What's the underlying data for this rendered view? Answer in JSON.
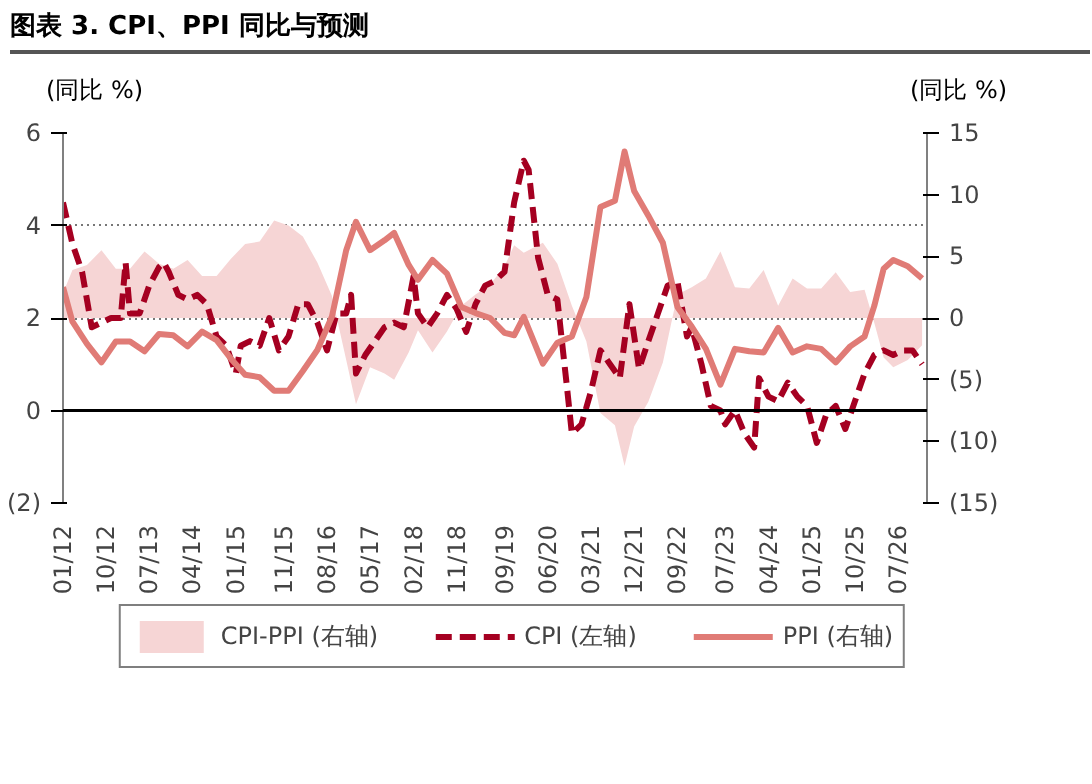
{
  "chart_data": {
    "type": "line",
    "title": "图表 3. CPI、PPI 同比与预测",
    "ylabel": "(同比 %)",
    "y2label": "(同比 %)",
    "xlim": [
      "2012-01",
      "2027-01"
    ],
    "xticks": [
      {
        "value": "2012-01",
        "label": "01/12"
      },
      {
        "value": "2012-10",
        "label": "10/12"
      },
      {
        "value": "2013-07",
        "label": "07/13"
      },
      {
        "value": "2014-04",
        "label": "04/14"
      },
      {
        "value": "2015-01",
        "label": "01/15"
      },
      {
        "value": "2015-11",
        "label": "11/15"
      },
      {
        "value": "2016-08",
        "label": "08/16"
      },
      {
        "value": "2017-05",
        "label": "05/17"
      },
      {
        "value": "2018-02",
        "label": "02/18"
      },
      {
        "value": "2018-11",
        "label": "11/18"
      },
      {
        "value": "2019-09",
        "label": "09/19"
      },
      {
        "value": "2020-06",
        "label": "06/20"
      },
      {
        "value": "2021-03",
        "label": "03/21"
      },
      {
        "value": "2021-12",
        "label": "12/21"
      },
      {
        "value": "2022-09",
        "label": "09/22"
      },
      {
        "value": "2023-07",
        "label": "07/23"
      },
      {
        "value": "2024-04",
        "label": "04/24"
      },
      {
        "value": "2025-01",
        "label": "01/25"
      },
      {
        "value": "2025-10",
        "label": "10/25"
      },
      {
        "value": "2026-07",
        "label": "07/26"
      }
    ],
    "ylim": [
      -2,
      6
    ],
    "yticks": [
      {
        "value": -2,
        "label": "(2)"
      },
      0,
      2,
      4,
      6
    ],
    "y2lim": [
      -15,
      15
    ],
    "y2ticks": [
      {
        "value": -15,
        "label": "(15)"
      },
      {
        "value": -10,
        "label": "(10)"
      },
      {
        "value": -5,
        "label": "(5)"
      },
      0,
      5,
      10,
      15
    ],
    "grid": "y",
    "legend": "bottom",
    "ref_lines": [
      {
        "axis": "y",
        "value": 0,
        "color": "#000000"
      }
    ],
    "series": [
      {
        "name": "CPI-PPI (右轴)",
        "type": "area",
        "axis": "y2",
        "color": "#f6d5d5",
        "x": [
          "2012-01",
          "2012-03",
          "2012-06",
          "2012-09",
          "2012-12",
          "2013-03",
          "2013-06",
          "2013-09",
          "2013-12",
          "2014-03",
          "2014-06",
          "2014-09",
          "2014-12",
          "2015-03",
          "2015-06",
          "2015-09",
          "2015-12",
          "2016-03",
          "2016-06",
          "2016-09",
          "2016-12",
          "2017-02",
          "2017-05",
          "2017-08",
          "2017-10",
          "2018-01",
          "2018-03",
          "2018-06",
          "2018-09",
          "2018-12",
          "2019-03",
          "2019-06",
          "2019-09",
          "2019-11",
          "2020-01",
          "2020-05",
          "2020-08",
          "2020-11",
          "2021-02",
          "2021-05",
          "2021-08",
          "2021-10",
          "2021-12",
          "2022-03",
          "2022-06",
          "2022-09",
          "2022-12",
          "2023-03",
          "2023-06",
          "2023-09",
          "2023-12",
          "2024-03",
          "2024-06",
          "2024-09",
          "2024-12",
          "2025-03",
          "2025-06",
          "2025-09",
          "2025-12",
          "2026-02",
          "2026-04",
          "2026-06",
          "2026-09",
          "2026-12"
        ],
        "values": [
          2.0,
          3.9,
          4.3,
          5.5,
          4.0,
          4.0,
          5.4,
          4.4,
          4.0,
          4.7,
          3.4,
          3.4,
          4.8,
          6.0,
          6.2,
          7.9,
          7.5,
          6.6,
          4.5,
          1.8,
          -3.4,
          -7.0,
          -4.0,
          -4.5,
          -5.0,
          -2.8,
          -1.0,
          -2.8,
          -1.1,
          1.0,
          1.9,
          2.7,
          4.2,
          5.9,
          5.3,
          6.1,
          4.4,
          1.0,
          -1.9,
          -7.7,
          -8.7,
          -12.0,
          -8.8,
          -6.8,
          -3.6,
          1.9,
          2.5,
          3.2,
          5.4,
          2.5,
          2.4,
          3.9,
          1.0,
          3.2,
          2.4,
          2.4,
          3.7,
          2.1,
          2.3,
          -0.4,
          -3.2,
          -4.0,
          -3.4,
          -2.2
        ]
      },
      {
        "name": "CPI (左轴)",
        "type": "line",
        "line_style": "dashed",
        "color": "#a50021",
        "x": [
          "2012-01",
          "2012-03",
          "2012-05",
          "2012-07",
          "2012-09",
          "2012-11",
          "2013-01",
          "2013-02",
          "2013-03",
          "2013-05",
          "2013-07",
          "2013-09",
          "2013-10",
          "2013-11",
          "2014-01",
          "2014-03",
          "2014-05",
          "2014-07",
          "2014-09",
          "2014-11",
          "2015-01",
          "2015-02",
          "2015-04",
          "2015-06",
          "2015-08",
          "2015-10",
          "2015-12",
          "2016-02",
          "2016-04",
          "2016-06",
          "2016-08",
          "2016-10",
          "2016-12",
          "2017-01",
          "2017-02",
          "2017-04",
          "2017-06",
          "2017-08",
          "2017-10",
          "2017-12",
          "2018-02",
          "2018-03",
          "2018-05",
          "2018-07",
          "2018-09",
          "2018-11",
          "2019-01",
          "2019-03",
          "2019-05",
          "2019-07",
          "2019-09",
          "2019-11",
          "2020-01",
          "2020-02",
          "2020-04",
          "2020-06",
          "2020-08",
          "2020-10",
          "2020-11",
          "2021-01",
          "2021-03",
          "2021-05",
          "2021-07",
          "2021-09",
          "2021-11",
          "2022-01",
          "2022-03",
          "2022-05",
          "2022-07",
          "2022-09",
          "2022-11",
          "2022-12",
          "2023-02",
          "2023-04",
          "2023-06",
          "2023-07",
          "2023-09",
          "2023-11",
          "2024-01",
          "2024-02",
          "2024-04",
          "2024-06",
          "2024-08",
          "2024-10",
          "2024-12",
          "2025-02",
          "2025-04",
          "2025-06",
          "2025-08",
          "2025-10",
          "2025-12",
          "2026-02",
          "2026-04",
          "2026-06",
          "2026-08",
          "2026-10",
          "2026-12"
        ],
        "values": [
          4.5,
          3.6,
          3.0,
          1.8,
          1.9,
          2.0,
          2.0,
          3.2,
          2.1,
          2.1,
          2.7,
          3.1,
          3.2,
          3.0,
          2.5,
          2.4,
          2.5,
          2.3,
          1.6,
          1.4,
          0.8,
          1.4,
          1.5,
          1.4,
          2.0,
          1.3,
          1.6,
          2.3,
          2.3,
          1.9,
          1.3,
          2.1,
          2.1,
          2.5,
          0.8,
          1.2,
          1.5,
          1.8,
          1.9,
          1.8,
          2.9,
          2.1,
          1.8,
          2.1,
          2.5,
          2.2,
          1.7,
          2.3,
          2.7,
          2.8,
          3.0,
          4.5,
          5.4,
          5.2,
          3.3,
          2.5,
          2.4,
          0.5,
          -0.5,
          -0.3,
          0.4,
          1.3,
          1.0,
          0.7,
          2.3,
          0.9,
          1.5,
          2.1,
          2.7,
          2.8,
          1.6,
          1.8,
          1.0,
          0.1,
          0.0,
          -0.3,
          0.0,
          -0.5,
          -0.8,
          0.7,
          0.3,
          0.2,
          0.6,
          0.3,
          0.1,
          -0.7,
          -0.1,
          0.1,
          -0.4,
          0.2,
          0.8,
          1.2,
          1.3,
          1.2,
          1.3,
          1.3,
          1.0
        ]
      },
      {
        "name": "PPI (右轴)",
        "type": "line",
        "axis": "y2",
        "line_style": "solid",
        "color": "#e07b76",
        "x": [
          "2012-01",
          "2012-03",
          "2012-06",
          "2012-09",
          "2012-12",
          "2013-03",
          "2013-06",
          "2013-09",
          "2013-12",
          "2014-03",
          "2014-06",
          "2014-09",
          "2014-12",
          "2015-03",
          "2015-06",
          "2015-09",
          "2015-12",
          "2016-03",
          "2016-06",
          "2016-09",
          "2016-12",
          "2017-02",
          "2017-05",
          "2017-08",
          "2017-10",
          "2018-01",
          "2018-03",
          "2018-06",
          "2018-09",
          "2018-12",
          "2019-03",
          "2019-06",
          "2019-09",
          "2019-11",
          "2020-01",
          "2020-05",
          "2020-08",
          "2020-11",
          "2021-02",
          "2021-05",
          "2021-08",
          "2021-10",
          "2021-12",
          "2022-03",
          "2022-06",
          "2022-09",
          "2022-12",
          "2023-03",
          "2023-06",
          "2023-09",
          "2023-12",
          "2024-03",
          "2024-06",
          "2024-09",
          "2024-12",
          "2025-03",
          "2025-06",
          "2025-09",
          "2025-12",
          "2026-02",
          "2026-04",
          "2026-06",
          "2026-09",
          "2026-12"
        ],
        "values": [
          2.5,
          -0.3,
          -2.1,
          -3.6,
          -1.9,
          -1.9,
          -2.7,
          -1.3,
          -1.4,
          -2.3,
          -1.1,
          -1.8,
          -3.3,
          -4.6,
          -4.8,
          -5.9,
          -5.9,
          -4.3,
          -2.6,
          0.1,
          5.5,
          7.8,
          5.5,
          6.3,
          6.9,
          4.3,
          3.1,
          4.7,
          3.6,
          0.9,
          0.4,
          0.0,
          -1.2,
          -1.4,
          0.1,
          -3.7,
          -2.0,
          -1.5,
          1.7,
          9.0,
          9.5,
          13.5,
          10.3,
          8.3,
          6.1,
          0.9,
          -0.7,
          -2.5,
          -5.4,
          -2.5,
          -2.7,
          -2.8,
          -0.8,
          -2.8,
          -2.3,
          -2.5,
          -3.6,
          -2.3,
          -1.5,
          1.0,
          4.0,
          4.7,
          4.2,
          3.2
        ]
      }
    ]
  }
}
